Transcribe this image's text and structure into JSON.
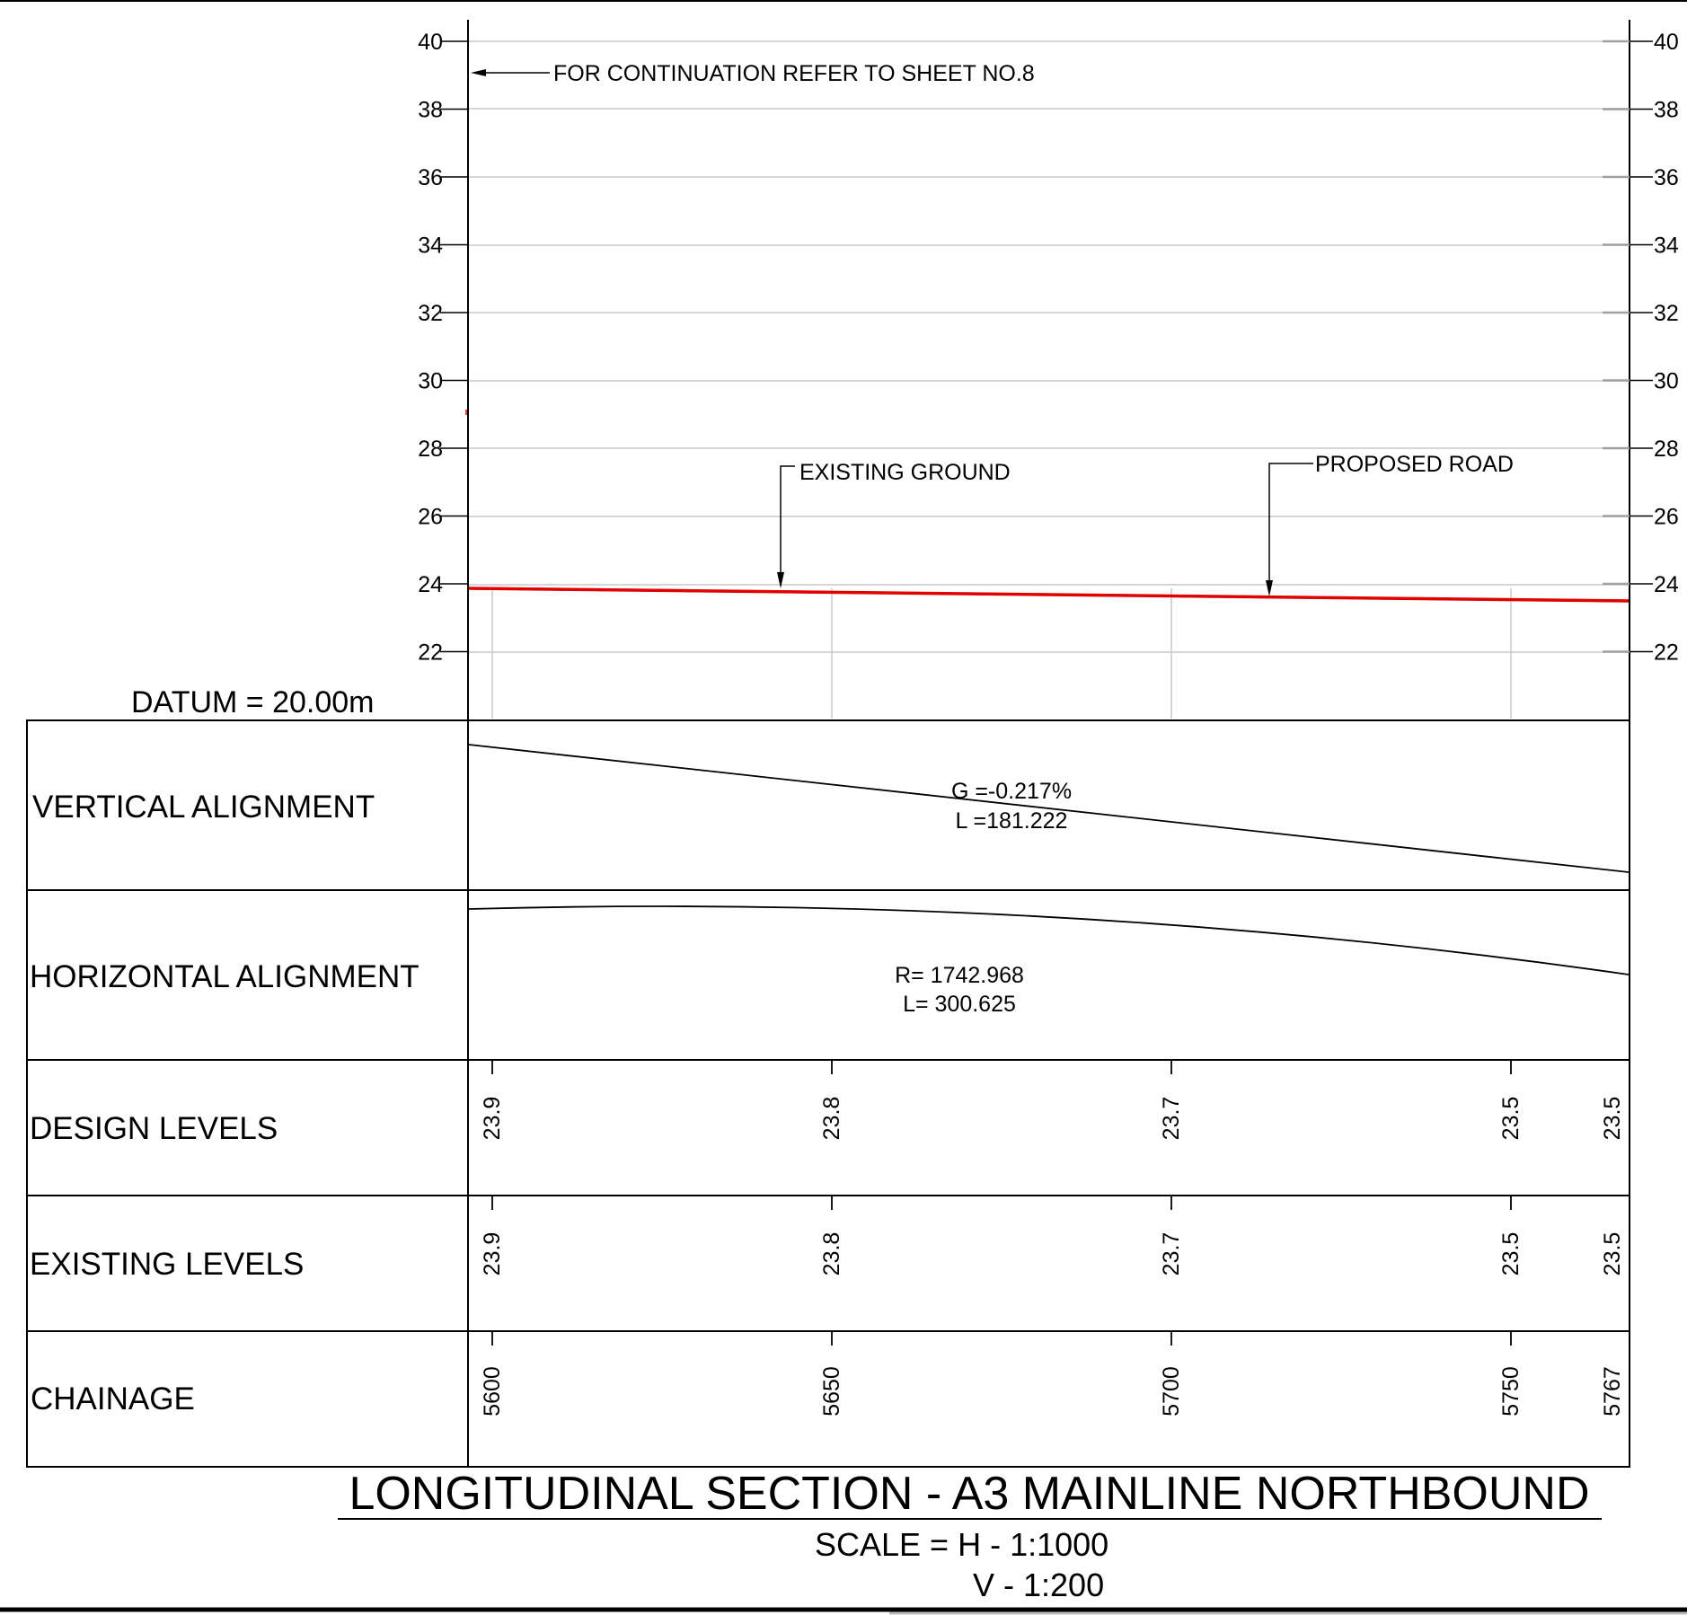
{
  "sheet": {
    "datum_label": "DATUM = 20.00m",
    "continuation_note": "FOR CONTINUATION REFER TO  SHEET NO.8",
    "title": "LONGITUDINAL SECTION - A3 MAINLINE NORTHBOUND",
    "scale_h": "SCALE  = H - 1:1000",
    "scale_v": "V - 1:200"
  },
  "profile": {
    "level_ticks": [
      "40",
      "38",
      "36",
      "34",
      "32",
      "30",
      "28",
      "26",
      "24",
      "22"
    ],
    "existing_ground_label": "EXISTING GROUND",
    "proposed_road_label": "PROPOSED ROAD",
    "proposed_road_color": "#e00000",
    "existing_ground_color": "#3a9a3a",
    "proposed_road_levels": {
      "start_chainage": 5600,
      "start_level": 23.9,
      "end_chainage": 5767,
      "end_level": 23.5
    }
  },
  "bands": {
    "vertical_alignment": {
      "label": "VERTICAL ALIGNMENT",
      "grade": "G =-0.217%",
      "length": "L =181.222"
    },
    "horizontal_alignment": {
      "label": "HORIZONTAL ALIGNMENT",
      "radius": "R= 1742.968",
      "length": "L= 300.625"
    },
    "design_levels": {
      "label": "DESIGN LEVELS",
      "values": [
        "23.9",
        "23.8",
        "23.7",
        "23.5",
        "23.5"
      ]
    },
    "existing_levels": {
      "label": "EXISTING LEVELS",
      "values": [
        "23.9",
        "23.8",
        "23.7",
        "23.5",
        "23.5"
      ]
    },
    "chainage": {
      "label": "CHAINAGE",
      "values": [
        "5600",
        "5650",
        "5700",
        "5750",
        "5767"
      ]
    }
  }
}
